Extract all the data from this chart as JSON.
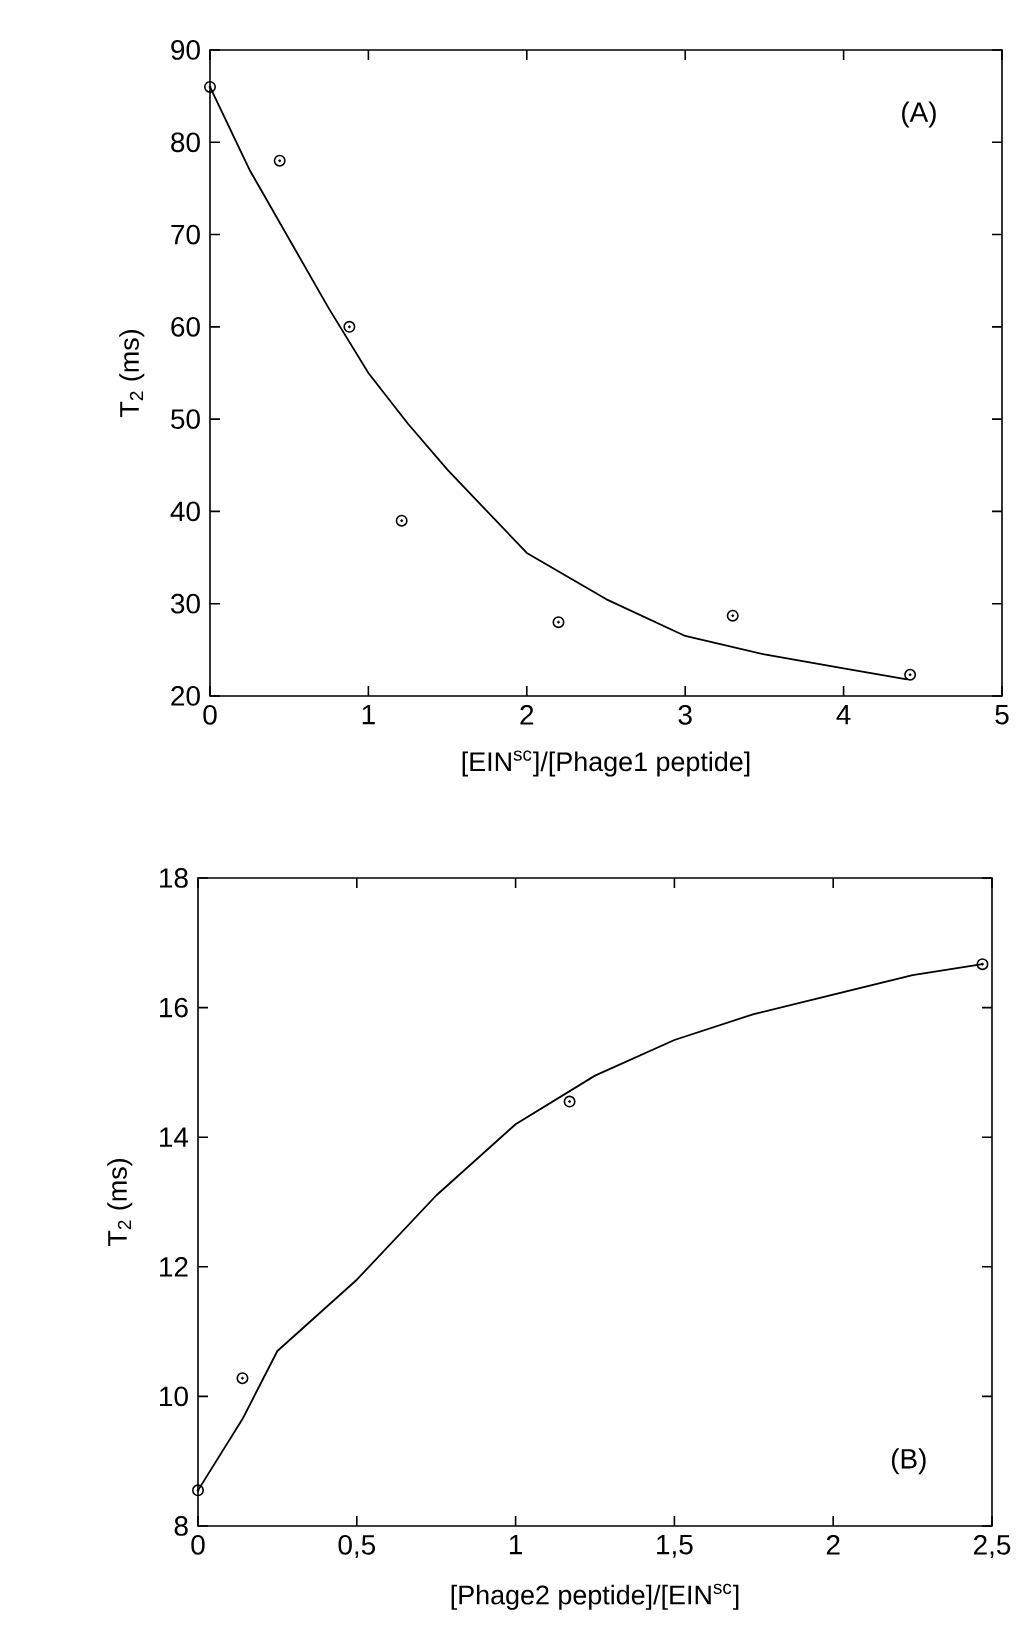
{
  "chart_data": [
    {
      "type": "scatter",
      "xlabel": "[EIN$^{sc}$]/[Phage1 peptide]",
      "ylabel": "T$_{2}$ (ms)",
      "annotations": [
        "(A)"
      ],
      "xlim": [
        0,
        5
      ],
      "ylim": [
        20,
        90
      ],
      "xticks": [
        0,
        1,
        2,
        3,
        4,
        5
      ],
      "yticks": [
        20,
        30,
        40,
        50,
        60,
        70,
        80,
        90
      ],
      "grid": false,
      "series": [
        {
          "marker": "circle",
          "color": "#000000",
          "x": [
            0,
            0.44,
            0.88,
            1.21,
            2.2,
            3.3,
            4.42
          ],
          "values": [
            86,
            78,
            60,
            39,
            28,
            28.7,
            22.3
          ]
        },
        {
          "type": "line",
          "color": "#000000",
          "line_style": "solid",
          "x": [
            0,
            0.25,
            0.5,
            0.75,
            1,
            1.25,
            1.5,
            1.75,
            2,
            2.5,
            3,
            3.5,
            4,
            4.4
          ],
          "values": [
            86,
            77,
            69.5,
            62,
            55,
            49.5,
            44.5,
            40,
            35.5,
            30.5,
            26.5,
            24.5,
            23,
            21.8
          ]
        }
      ]
    },
    {
      "type": "scatter",
      "xlabel": "[Phage2 peptide]/[EIN$^{sc}$]",
      "ylabel": "T$_{2}$ (ms)",
      "annotations": [
        "(B)"
      ],
      "xlim": [
        0,
        2.5
      ],
      "ylim": [
        8,
        18
      ],
      "xticks": [
        0,
        {
          "value": 0.5,
          "label": "0,5"
        },
        1,
        {
          "value": 1.5,
          "label": "1,5"
        },
        2,
        {
          "value": 2.5,
          "label": "2,5"
        }
      ],
      "yticks": [
        8,
        10,
        12,
        14,
        16,
        18
      ],
      "grid": false,
      "series": [
        {
          "marker": "circle",
          "color": "#000000",
          "x": [
            0,
            0.14,
            1.17,
            2.47
          ],
          "values": [
            8.55,
            10.28,
            14.55,
            16.67
          ]
        },
        {
          "type": "line",
          "color": "#000000",
          "line_style": "solid",
          "x": [
            0,
            0.14,
            0.25,
            0.5,
            0.75,
            1,
            1.25,
            1.5,
            1.75,
            2,
            2.25,
            2.47
          ],
          "values": [
            8.55,
            9.65,
            10.7,
            11.8,
            13.1,
            14.2,
            14.95,
            15.5,
            15.9,
            16.2,
            16.5,
            16.67
          ]
        }
      ]
    }
  ]
}
